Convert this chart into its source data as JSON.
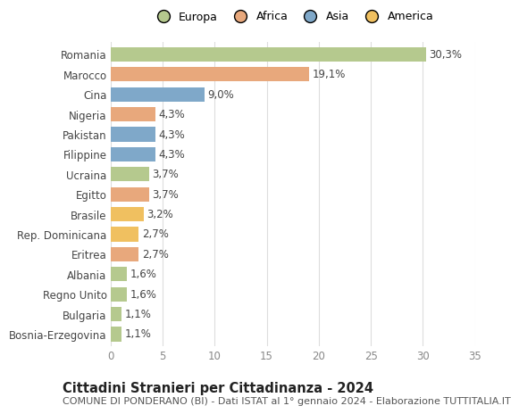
{
  "countries": [
    "Romania",
    "Marocco",
    "Cina",
    "Nigeria",
    "Pakistan",
    "Filippine",
    "Ucraina",
    "Egitto",
    "Brasile",
    "Rep. Dominicana",
    "Eritrea",
    "Albania",
    "Regno Unito",
    "Bulgaria",
    "Bosnia-Erzegovina"
  ],
  "values": [
    30.3,
    19.1,
    9.0,
    4.3,
    4.3,
    4.3,
    3.7,
    3.7,
    3.2,
    2.7,
    2.7,
    1.6,
    1.6,
    1.1,
    1.1
  ],
  "labels": [
    "30,3%",
    "19,1%",
    "9,0%",
    "4,3%",
    "4,3%",
    "4,3%",
    "3,7%",
    "3,7%",
    "3,2%",
    "2,7%",
    "2,7%",
    "1,6%",
    "1,6%",
    "1,1%",
    "1,1%"
  ],
  "colors": [
    "#b5c98e",
    "#e8a87c",
    "#7fa8c9",
    "#e8a87c",
    "#7fa8c9",
    "#7fa8c9",
    "#b5c98e",
    "#e8a87c",
    "#f0c060",
    "#f0c060",
    "#e8a87c",
    "#b5c98e",
    "#b5c98e",
    "#b5c98e",
    "#b5c98e"
  ],
  "legend_labels": [
    "Europa",
    "Africa",
    "Asia",
    "America"
  ],
  "legend_colors": [
    "#b5c98e",
    "#e8a87c",
    "#7fa8c9",
    "#f0c060"
  ],
  "xlim": [
    0,
    35
  ],
  "xticks": [
    0,
    5,
    10,
    15,
    20,
    25,
    30,
    35
  ],
  "title": "Cittadini Stranieri per Cittadinanza - 2024",
  "subtitle": "COMUNE DI PONDERANO (BI) - Dati ISTAT al 1° gennaio 2024 - Elaborazione TUTTITALIA.IT",
  "background_color": "#ffffff",
  "grid_color": "#dddddd",
  "bar_height": 0.72,
  "label_fontsize": 8.5,
  "tick_fontsize": 8.5,
  "title_fontsize": 10.5,
  "subtitle_fontsize": 8.0,
  "legend_fontsize": 9.0
}
